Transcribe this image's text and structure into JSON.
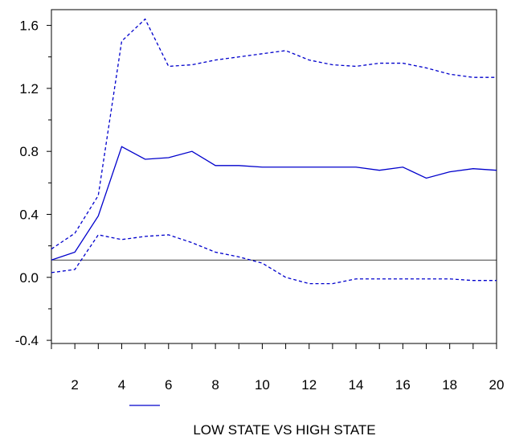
{
  "chart_data": {
    "type": "line",
    "title": "",
    "xlabel": "",
    "ylabel": "",
    "x": [
      1,
      2,
      3,
      4,
      5,
      6,
      7,
      8,
      9,
      10,
      11,
      12,
      13,
      14,
      15,
      16,
      17,
      18,
      19,
      20
    ],
    "xticks": [
      2,
      4,
      6,
      8,
      10,
      12,
      14,
      16,
      18,
      20
    ],
    "xlim": [
      1,
      20
    ],
    "yticks": [
      -0.4,
      0.0,
      0.4,
      0.8,
      1.2,
      1.6
    ],
    "ytick_labels": [
      "-0.4",
      "0.0",
      "0.4",
      "0.8",
      "1.2",
      "1.6"
    ],
    "ylim": [
      -0.42,
      1.7
    ],
    "zero_line": 0.11,
    "grid": false,
    "legend_position": "bottom-center",
    "series": [
      {
        "name": "LOW STATE VS HIGH STATE",
        "style": "solid",
        "color": "#0000cc",
        "values": [
          0.11,
          0.16,
          0.39,
          0.83,
          0.75,
          0.76,
          0.8,
          0.71,
          0.71,
          0.7,
          0.7,
          0.7,
          0.7,
          0.7,
          0.68,
          0.7,
          0.63,
          0.67,
          0.69,
          0.68
        ]
      },
      {
        "name": "",
        "style": "dashed",
        "color": "#0000cc",
        "values": [
          0.18,
          0.28,
          0.52,
          1.5,
          1.64,
          1.34,
          1.35,
          1.38,
          1.4,
          1.42,
          1.44,
          1.38,
          1.35,
          1.34,
          1.36,
          1.36,
          1.33,
          1.29,
          1.27,
          1.27
        ]
      },
      {
        "name": "",
        "style": "dashed",
        "color": "#0000cc",
        "values": [
          0.03,
          0.05,
          0.27,
          0.24,
          0.26,
          0.27,
          0.22,
          0.16,
          0.13,
          0.09,
          0.0,
          -0.04,
          -0.04,
          -0.01,
          -0.01,
          -0.01,
          -0.01,
          -0.01,
          -0.02,
          -0.02
        ]
      }
    ]
  }
}
